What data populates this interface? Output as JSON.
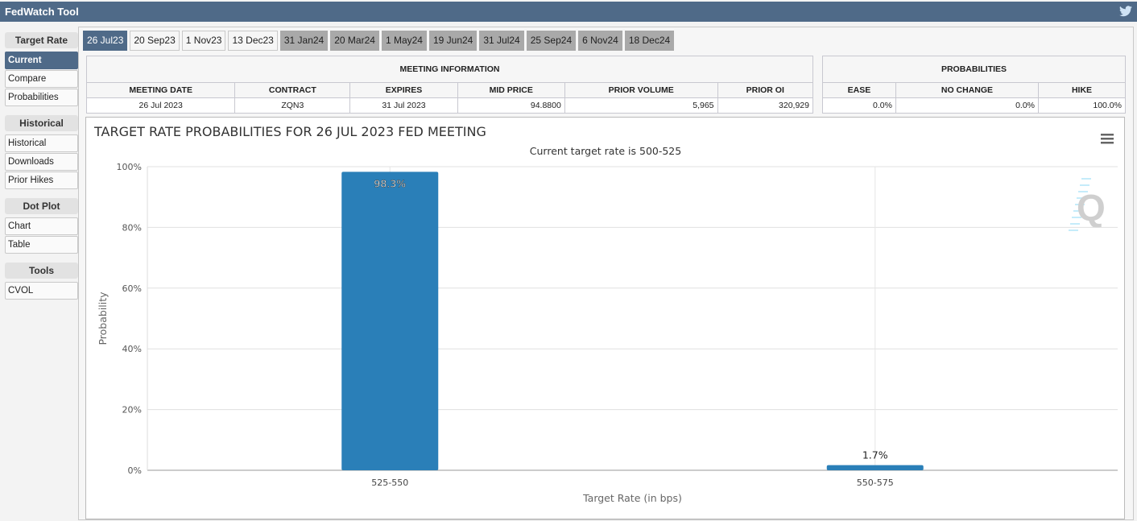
{
  "app": {
    "title": "FedWatch Tool",
    "share_icon": "twitter-icon"
  },
  "sidebar": [
    {
      "header": "Target Rate",
      "items": [
        "Current",
        "Compare",
        "Probabilities"
      ]
    },
    {
      "header": "Historical",
      "items": [
        "Historical",
        "Downloads",
        "Prior Hikes"
      ]
    },
    {
      "header": "Dot Plot",
      "items": [
        "Chart",
        "Table"
      ]
    },
    {
      "header": "Tools",
      "items": [
        "CVOL"
      ]
    }
  ],
  "sidebar_active": "Current",
  "tabs": [
    {
      "label": "26 Jul23",
      "state": "active"
    },
    {
      "label": "20 Sep23",
      "state": "normal"
    },
    {
      "label": "1 Nov23",
      "state": "normal"
    },
    {
      "label": "13 Dec23",
      "state": "normal"
    },
    {
      "label": "31 Jan24",
      "state": "disabled"
    },
    {
      "label": "20 Mar24",
      "state": "disabled"
    },
    {
      "label": "1 May24",
      "state": "disabled"
    },
    {
      "label": "19 Jun24",
      "state": "disabled"
    },
    {
      "label": "31 Jul24",
      "state": "disabled"
    },
    {
      "label": "25 Sep24",
      "state": "disabled"
    },
    {
      "label": "6 Nov24",
      "state": "disabled"
    },
    {
      "label": "18 Dec24",
      "state": "disabled"
    }
  ],
  "meeting_info": {
    "title": "MEETING INFORMATION",
    "headers": [
      "MEETING DATE",
      "CONTRACT",
      "EXPIRES",
      "MID PRICE",
      "PRIOR VOLUME",
      "PRIOR OI"
    ],
    "values": [
      "26 Jul 2023",
      "ZQN3",
      "31 Jul 2023",
      "94.8800",
      "5,965",
      "320,929"
    ]
  },
  "probabilities": {
    "title": "PROBABILITIES",
    "headers": [
      "EASE",
      "NO CHANGE",
      "HIKE"
    ],
    "values": [
      "0.0%",
      "0.0%",
      "100.0%"
    ]
  },
  "chart_data": {
    "type": "bar",
    "title": "TARGET RATE PROBABILITIES FOR 26 JUL 2023 FED MEETING",
    "subtitle": "Current target rate is 500-525",
    "xlabel": "Target Rate (in bps)",
    "ylabel": "Probability",
    "categories": [
      "525-550",
      "550-575"
    ],
    "values": [
      98.3,
      1.7
    ],
    "data_labels": [
      "98.3%",
      "1.7%"
    ],
    "ylim": [
      0,
      100
    ],
    "yticks": [
      "0%",
      "20%",
      "40%",
      "60%",
      "80%",
      "100%"
    ],
    "grid": true,
    "bar_color": "#2a7fb8",
    "menu_icon": "hamburger-menu-icon",
    "watermark": "Q"
  }
}
